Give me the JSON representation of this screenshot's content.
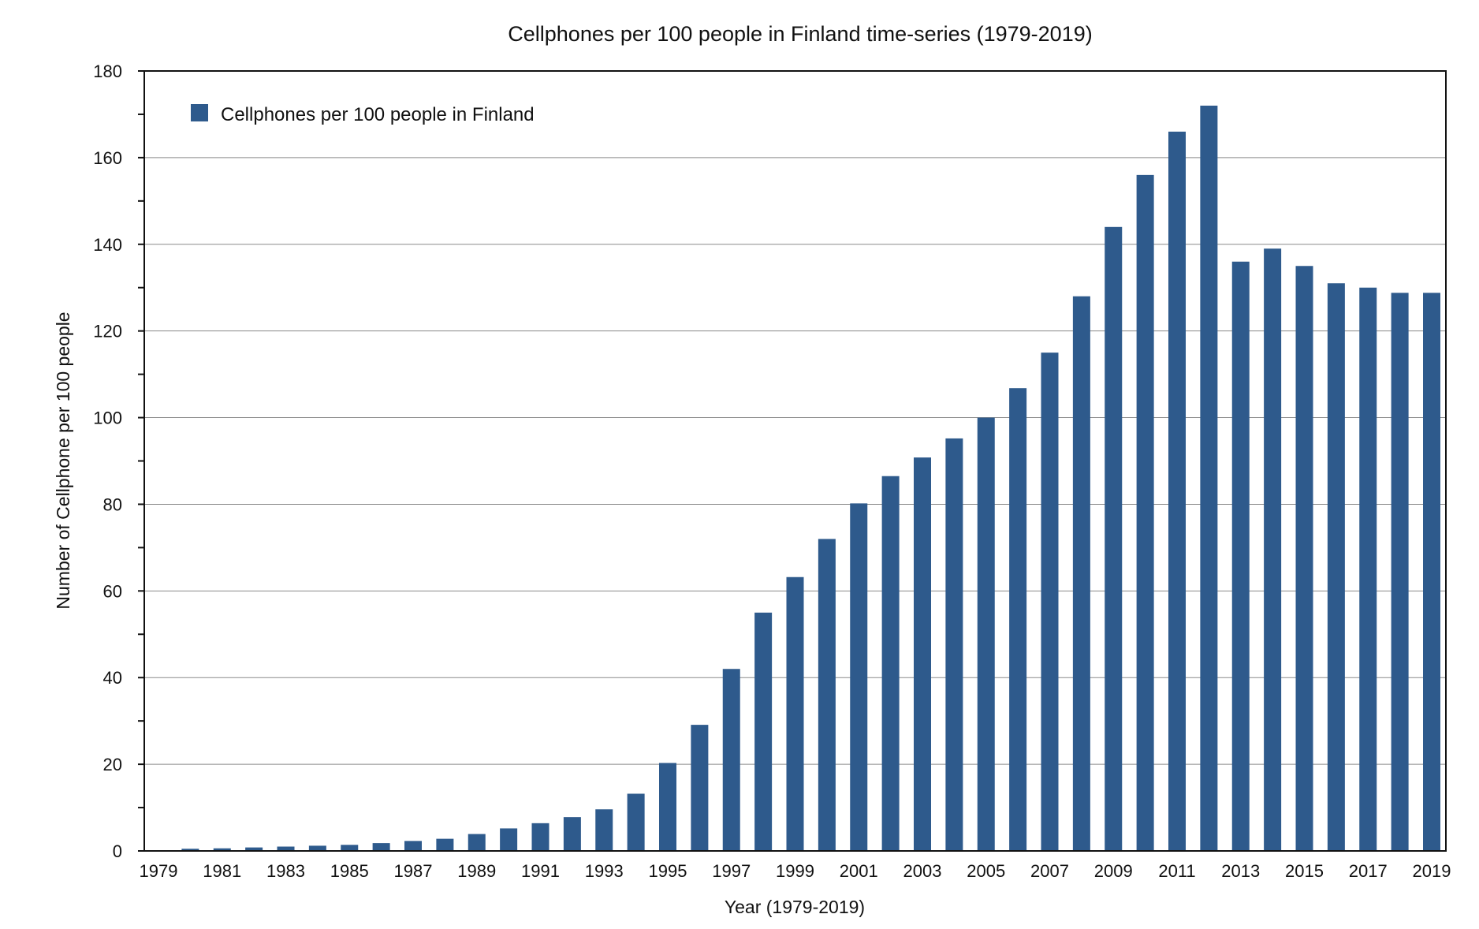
{
  "chart_data": {
    "type": "bar",
    "title": "Cellphones per 100 people in Finland time-series (1979-2019)",
    "xlabel": "Year (1979-2019)",
    "ylabel": "Number of Cellphone per 100 people",
    "ylim": [
      0,
      180
    ],
    "yticks": [
      0,
      20,
      40,
      60,
      80,
      100,
      120,
      140,
      160,
      180
    ],
    "xlim": [
      1979,
      2019
    ],
    "xticks": [
      "1979",
      "1981",
      "1983",
      "1985",
      "1987",
      "1989",
      "1991",
      "1993",
      "1995",
      "1997",
      "1999",
      "2001",
      "2003",
      "2005",
      "2007",
      "2009",
      "2011",
      "2013",
      "2015",
      "2017",
      "2019"
    ],
    "grid": "horizontal",
    "legend_position": "top-left",
    "bar_color": "#2e5a8c",
    "series": [
      {
        "name": "Cellphones per 100 people in Finland",
        "categories": [
          1980,
          1981,
          1982,
          1983,
          1984,
          1985,
          1986,
          1987,
          1988,
          1989,
          1990,
          1991,
          1992,
          1993,
          1994,
          1995,
          1996,
          1997,
          1998,
          1999,
          2000,
          2001,
          2002,
          2003,
          2004,
          2005,
          2006,
          2007,
          2008,
          2009,
          2010,
          2011,
          2012,
          2013,
          2014,
          2015,
          2016,
          2017,
          2018,
          2019
        ],
        "values": [
          0.5,
          0.6,
          0.8,
          1.0,
          1.2,
          1.4,
          1.8,
          2.3,
          2.8,
          3.9,
          5.2,
          6.4,
          7.8,
          9.6,
          13.2,
          20.3,
          29.1,
          42.0,
          55.0,
          63.2,
          72.0,
          80.2,
          86.5,
          90.8,
          95.2,
          100.0,
          106.8,
          115.0,
          128.0,
          144.0,
          156.0,
          166.0,
          172.0,
          136.0,
          139.0,
          135.0,
          131.0,
          130.0,
          128.8,
          128.8
        ]
      }
    ]
  }
}
